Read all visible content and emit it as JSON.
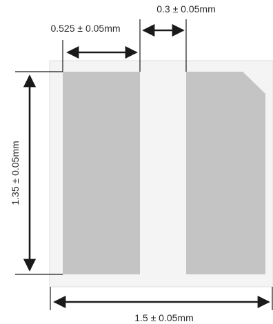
{
  "labels": {
    "pad_width": "0.525 ± 0.05mm",
    "gap": "0.3 ± 0.05mm",
    "height": "1.35 ± 0.05mm",
    "total_width": "1.5 ± 0.05mm"
  },
  "colors": {
    "pad": "#c4c4c4",
    "substrate": "#f4f4f4",
    "substrate_border": "#dedede",
    "line": "#1a1a1a"
  }
}
